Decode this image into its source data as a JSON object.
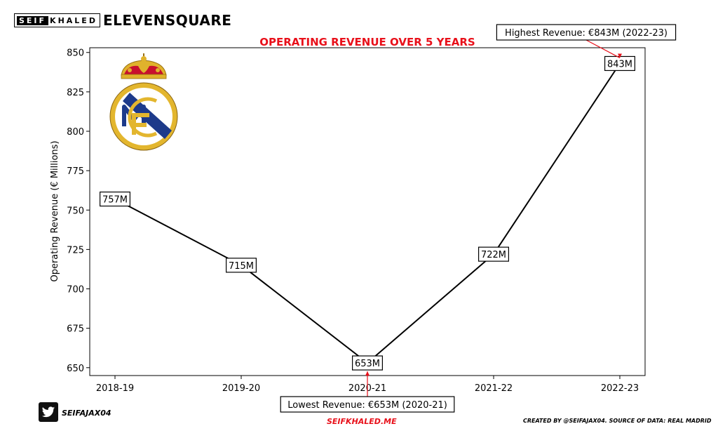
{
  "brand": {
    "seif": "SEIF",
    "khaled": "KHALED",
    "eleven_square": "ELEVENSQUARE"
  },
  "footer": {
    "twitter_handle": "SEIFAJAX04",
    "website": "SEIFKHALED.ME",
    "credit": "CREATED BY @SEIFAJAX04. SOURCE OF DATA: REAL MADRID"
  },
  "colors": {
    "title": "#e8101a",
    "line": "#000000",
    "annotation_arrow": "#e8101a"
  },
  "icons": {
    "logo": "real-madrid-crest-icon",
    "social": "twitter-icon"
  },
  "chart_data": {
    "type": "line",
    "title": "OPERATING REVENUE OVER 5 YEARS",
    "xlabel": "",
    "ylabel": "Operating Revenue (€ Millions)",
    "categories": [
      "2018-19",
      "2019-20",
      "2020-21",
      "2021-22",
      "2022-23"
    ],
    "series": [
      {
        "values": [
          757,
          715,
          653,
          722,
          843
        ]
      }
    ],
    "data_labels": [
      "757M",
      "715M",
      "653M",
      "722M",
      "843M"
    ],
    "yticks": [
      650,
      675,
      700,
      725,
      750,
      775,
      800,
      825,
      850
    ],
    "ylim": [
      645,
      853
    ],
    "grid": false,
    "annotations": [
      {
        "text": "Highest Revenue: €843M (2022-23)",
        "category": "2022-23",
        "value": 843
      },
      {
        "text": "Lowest Revenue: €653M (2020-21)",
        "category": "2020-21",
        "value": 653
      }
    ]
  }
}
